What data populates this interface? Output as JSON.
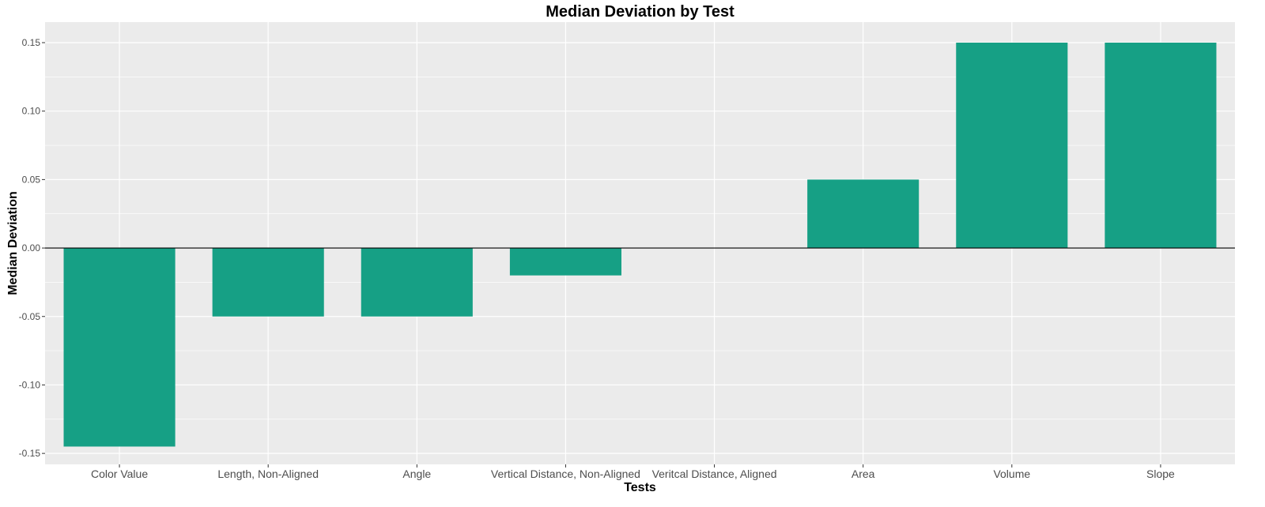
{
  "chart_data": {
    "type": "bar",
    "title": "Median Deviation by Test",
    "xlabel": "Tests",
    "ylabel": "Median Deviation",
    "categories": [
      "Color Value",
      "Length, Non-Aligned",
      "Angle",
      "Vertical Distance, Non-Aligned",
      "Veritcal Distance, Aligned",
      "Area",
      "Volume",
      "Slope"
    ],
    "values": [
      -0.145,
      -0.05,
      -0.05,
      -0.02,
      0.0,
      0.05,
      0.15,
      0.15
    ],
    "ylim": [
      -0.158,
      0.165
    ],
    "yticks": [
      -0.15,
      -0.1,
      -0.05,
      0.0,
      0.05,
      0.1,
      0.15
    ],
    "ytick_labels": [
      "-0.15",
      "-0.10",
      "-0.05",
      "0.00",
      "0.05",
      "0.10",
      "0.15"
    ],
    "bar_color": "#16a085",
    "panel_color": "#ebebeb",
    "grid": true,
    "zero_line": true
  }
}
